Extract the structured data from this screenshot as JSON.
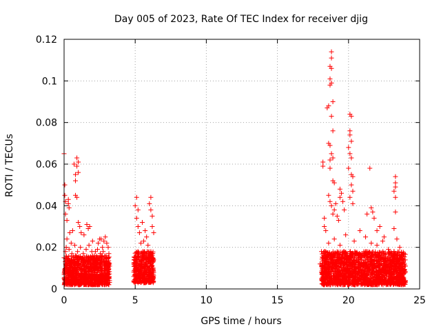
{
  "chart_data": {
    "type": "scatter",
    "title": "Day 005 of 2023, Rate Of TEC Index for receiver djig",
    "xlabel": "GPS time / hours",
    "ylabel": "ROTI / TECUs",
    "xlim": [
      0,
      25
    ],
    "ylim": [
      0,
      0.12
    ],
    "xticks": [
      0,
      5,
      10,
      15,
      20,
      25
    ],
    "xtick_labels": [
      "0",
      "5",
      "10",
      "15",
      "20",
      "25"
    ],
    "yticks": [
      0,
      0.02,
      0.04,
      0.06,
      0.08,
      0.1,
      0.12
    ],
    "ytick_labels": [
      "0",
      "0.02",
      "0.04",
      "0.06",
      "0.08",
      "0.1",
      "0.12"
    ],
    "grid": true,
    "marker": "+",
    "marker_color": "#ff0000",
    "series": [
      {
        "name": "ROTI",
        "points": [
          [
            0.0,
            0.065
          ],
          [
            0.05,
            0.05
          ],
          [
            0.05,
            0.045
          ],
          [
            0.1,
            0.042
          ],
          [
            0.1,
            0.036
          ],
          [
            0.2,
            0.033
          ],
          [
            0.3,
            0.043
          ],
          [
            0.3,
            0.041
          ],
          [
            0.35,
            0.039
          ],
          [
            0.2,
            0.024
          ],
          [
            0.1,
            0.018
          ],
          [
            0.4,
            0.027
          ],
          [
            0.5,
            0.022
          ],
          [
            0.7,
            0.06
          ],
          [
            0.8,
            0.055
          ],
          [
            0.8,
            0.052
          ],
          [
            0.9,
            0.063
          ],
          [
            0.9,
            0.059
          ],
          [
            1.0,
            0.061
          ],
          [
            1.0,
            0.056
          ],
          [
            0.8,
            0.045
          ],
          [
            0.9,
            0.044
          ],
          [
            1.0,
            0.032
          ],
          [
            1.1,
            0.03
          ],
          [
            0.6,
            0.028
          ],
          [
            1.2,
            0.027
          ],
          [
            1.4,
            0.026
          ],
          [
            1.6,
            0.031
          ],
          [
            1.7,
            0.029
          ],
          [
            1.8,
            0.03
          ],
          [
            2.0,
            0.023
          ],
          [
            2.2,
            0.018
          ],
          [
            2.4,
            0.022
          ],
          [
            2.5,
            0.024
          ],
          [
            2.6,
            0.024
          ],
          [
            2.7,
            0.02
          ],
          [
            2.8,
            0.023
          ],
          [
            2.9,
            0.025
          ],
          [
            3.0,
            0.022
          ],
          [
            3.1,
            0.02
          ],
          [
            0.0,
            0.015
          ],
          [
            0.1,
            0.012
          ],
          [
            0.2,
            0.01
          ],
          [
            0.3,
            0.008
          ],
          [
            0.4,
            0.012
          ],
          [
            0.5,
            0.014
          ],
          [
            0.6,
            0.009
          ],
          [
            0.7,
            0.011
          ],
          [
            0.8,
            0.016
          ],
          [
            0.9,
            0.007
          ],
          [
            1.0,
            0.012
          ],
          [
            1.1,
            0.01
          ],
          [
            1.2,
            0.014
          ],
          [
            1.3,
            0.009
          ],
          [
            1.4,
            0.011
          ],
          [
            1.5,
            0.013
          ],
          [
            1.6,
            0.008
          ],
          [
            1.7,
            0.012
          ],
          [
            1.8,
            0.015
          ],
          [
            1.9,
            0.01
          ],
          [
            2.0,
            0.011
          ],
          [
            2.1,
            0.009
          ],
          [
            2.2,
            0.013
          ],
          [
            2.3,
            0.012
          ],
          [
            2.4,
            0.01
          ],
          [
            2.5,
            0.014
          ],
          [
            2.6,
            0.009
          ],
          [
            2.7,
            0.011
          ],
          [
            2.8,
            0.012
          ],
          [
            2.9,
            0.01
          ],
          [
            3.0,
            0.013
          ],
          [
            3.1,
            0.008
          ],
          [
            3.2,
            0.011
          ],
          [
            0.0,
            0.005
          ],
          [
            0.2,
            0.004
          ],
          [
            0.4,
            0.006
          ],
          [
            0.6,
            0.004
          ],
          [
            0.8,
            0.005
          ],
          [
            1.0,
            0.004
          ],
          [
            1.2,
            0.006
          ],
          [
            1.4,
            0.005
          ],
          [
            1.6,
            0.003
          ],
          [
            1.8,
            0.006
          ],
          [
            2.0,
            0.004
          ],
          [
            2.2,
            0.005
          ],
          [
            2.4,
            0.006
          ],
          [
            2.6,
            0.004
          ],
          [
            2.8,
            0.005
          ],
          [
            3.0,
            0.006
          ],
          [
            3.2,
            0.004
          ],
          [
            0.15,
            0.02
          ],
          [
            0.35,
            0.019
          ],
          [
            0.55,
            0.017
          ],
          [
            0.75,
            0.021
          ],
          [
            0.95,
            0.018
          ],
          [
            1.15,
            0.02
          ],
          [
            1.35,
            0.017
          ],
          [
            1.55,
            0.019
          ],
          [
            1.75,
            0.021
          ],
          [
            1.95,
            0.018
          ],
          [
            2.15,
            0.016
          ],
          [
            2.35,
            0.019
          ],
          [
            2.55,
            0.017
          ],
          [
            2.75,
            0.018
          ],
          [
            2.95,
            0.016
          ],
          [
            3.15,
            0.017
          ],
          [
            4.9,
            0.012
          ],
          [
            5.0,
            0.01
          ],
          [
            5.1,
            0.015
          ],
          [
            5.2,
            0.018
          ],
          [
            5.3,
            0.013
          ],
          [
            5.4,
            0.011
          ],
          [
            5.5,
            0.016
          ],
          [
            5.6,
            0.014
          ],
          [
            5.7,
            0.012
          ],
          [
            5.8,
            0.017
          ],
          [
            5.9,
            0.015
          ],
          [
            6.0,
            0.013
          ],
          [
            6.1,
            0.018
          ],
          [
            6.2,
            0.016
          ],
          [
            6.3,
            0.014
          ],
          [
            4.9,
            0.006
          ],
          [
            5.1,
            0.005
          ],
          [
            5.3,
            0.007
          ],
          [
            5.5,
            0.004
          ],
          [
            5.7,
            0.006
          ],
          [
            5.9,
            0.005
          ],
          [
            6.1,
            0.007
          ],
          [
            6.3,
            0.008
          ],
          [
            5.2,
            0.003
          ],
          [
            5.6,
            0.003
          ],
          [
            5.0,
            0.04
          ],
          [
            5.1,
            0.044
          ],
          [
            5.2,
            0.038
          ],
          [
            5.1,
            0.034
          ],
          [
            5.2,
            0.03
          ],
          [
            5.3,
            0.027
          ],
          [
            5.5,
            0.032
          ],
          [
            5.6,
            0.023
          ],
          [
            5.7,
            0.028
          ],
          [
            5.8,
            0.025
          ],
          [
            6.0,
            0.041
          ],
          [
            6.1,
            0.044
          ],
          [
            6.1,
            0.038
          ],
          [
            6.2,
            0.035
          ],
          [
            6.2,
            0.03
          ],
          [
            6.3,
            0.027
          ],
          [
            5.4,
            0.022
          ],
          [
            5.9,
            0.021
          ],
          [
            18.2,
            0.061
          ],
          [
            18.2,
            0.059
          ],
          [
            18.3,
            0.034
          ],
          [
            18.3,
            0.03
          ],
          [
            18.4,
            0.028
          ],
          [
            18.1,
            0.018
          ],
          [
            18.2,
            0.015
          ],
          [
            18.0,
            0.012
          ],
          [
            18.1,
            0.008
          ],
          [
            18.3,
            0.01
          ],
          [
            18.4,
            0.006
          ],
          [
            18.5,
            0.087
          ],
          [
            18.6,
            0.088
          ],
          [
            18.7,
            0.107
          ],
          [
            18.7,
            0.101
          ],
          [
            18.7,
            0.098
          ],
          [
            18.8,
            0.114
          ],
          [
            18.8,
            0.111
          ],
          [
            18.8,
            0.106
          ],
          [
            18.8,
            0.099
          ],
          [
            18.9,
            0.09
          ],
          [
            18.8,
            0.083
          ],
          [
            18.9,
            0.076
          ],
          [
            18.6,
            0.07
          ],
          [
            18.7,
            0.069
          ],
          [
            18.8,
            0.065
          ],
          [
            18.7,
            0.062
          ],
          [
            18.9,
            0.063
          ],
          [
            18.7,
            0.058
          ],
          [
            18.9,
            0.052
          ],
          [
            19.0,
            0.051
          ],
          [
            18.6,
            0.045
          ],
          [
            18.7,
            0.042
          ],
          [
            18.8,
            0.04
          ],
          [
            18.9,
            0.036
          ],
          [
            19.0,
            0.038
          ],
          [
            19.1,
            0.041
          ],
          [
            19.2,
            0.035
          ],
          [
            19.3,
            0.033
          ],
          [
            19.4,
            0.048
          ],
          [
            19.4,
            0.044
          ],
          [
            19.5,
            0.046
          ],
          [
            19.6,
            0.042
          ],
          [
            19.7,
            0.038
          ],
          [
            20.0,
            0.068
          ],
          [
            20.1,
            0.076
          ],
          [
            20.1,
            0.074
          ],
          [
            20.2,
            0.083
          ],
          [
            20.1,
            0.084
          ],
          [
            20.2,
            0.071
          ],
          [
            20.1,
            0.065
          ],
          [
            20.2,
            0.063
          ],
          [
            20.0,
            0.058
          ],
          [
            20.2,
            0.055
          ],
          [
            20.3,
            0.054
          ],
          [
            20.2,
            0.05
          ],
          [
            20.3,
            0.047
          ],
          [
            20.3,
            0.041
          ],
          [
            20.1,
            0.044
          ],
          [
            21.5,
            0.058
          ],
          [
            21.3,
            0.036
          ],
          [
            21.6,
            0.039
          ],
          [
            21.7,
            0.037
          ],
          [
            21.8,
            0.034
          ],
          [
            22.0,
            0.028
          ],
          [
            22.2,
            0.03
          ],
          [
            22.5,
            0.025
          ],
          [
            23.3,
            0.054
          ],
          [
            23.3,
            0.051
          ],
          [
            23.3,
            0.049
          ],
          [
            23.2,
            0.047
          ],
          [
            23.3,
            0.044
          ],
          [
            23.3,
            0.037
          ],
          [
            23.2,
            0.029
          ],
          [
            23.4,
            0.024
          ],
          [
            18.5,
            0.014
          ],
          [
            18.7,
            0.016
          ],
          [
            18.9,
            0.013
          ],
          [
            19.1,
            0.017
          ],
          [
            19.3,
            0.015
          ],
          [
            19.5,
            0.012
          ],
          [
            19.7,
            0.018
          ],
          [
            19.9,
            0.014
          ],
          [
            20.1,
            0.016
          ],
          [
            20.3,
            0.013
          ],
          [
            20.5,
            0.017
          ],
          [
            20.7,
            0.015
          ],
          [
            20.9,
            0.012
          ],
          [
            21.1,
            0.016
          ],
          [
            21.3,
            0.014
          ],
          [
            21.5,
            0.017
          ],
          [
            21.7,
            0.013
          ],
          [
            21.9,
            0.015
          ],
          [
            22.1,
            0.012
          ],
          [
            22.3,
            0.016
          ],
          [
            22.5,
            0.014
          ],
          [
            22.7,
            0.011
          ],
          [
            22.9,
            0.013
          ],
          [
            23.1,
            0.015
          ],
          [
            23.3,
            0.012
          ],
          [
            23.5,
            0.01
          ],
          [
            23.7,
            0.012
          ],
          [
            23.9,
            0.009
          ],
          [
            24.0,
            0.011
          ],
          [
            18.6,
            0.022
          ],
          [
            19.0,
            0.024
          ],
          [
            19.4,
            0.021
          ],
          [
            19.8,
            0.026
          ],
          [
            20.4,
            0.023
          ],
          [
            20.8,
            0.028
          ],
          [
            21.2,
            0.025
          ],
          [
            21.6,
            0.022
          ],
          [
            22.0,
            0.021
          ],
          [
            22.4,
            0.023
          ],
          [
            22.8,
            0.019
          ],
          [
            23.2,
            0.018
          ],
          [
            23.6,
            0.02
          ],
          [
            23.9,
            0.017
          ],
          [
            18.4,
            0.005
          ],
          [
            18.8,
            0.006
          ],
          [
            19.2,
            0.004
          ],
          [
            19.6,
            0.005
          ],
          [
            20.0,
            0.006
          ],
          [
            20.4,
            0.004
          ],
          [
            20.8,
            0.005
          ],
          [
            21.2,
            0.006
          ],
          [
            21.6,
            0.004
          ],
          [
            22.0,
            0.005
          ],
          [
            22.4,
            0.006
          ],
          [
            22.8,
            0.004
          ],
          [
            23.2,
            0.005
          ],
          [
            23.6,
            0.003
          ],
          [
            24.0,
            0.004
          ],
          [
            18.5,
            0.008
          ],
          [
            18.9,
            0.009
          ],
          [
            19.3,
            0.008
          ],
          [
            19.7,
            0.009
          ],
          [
            20.1,
            0.01
          ],
          [
            20.5,
            0.008
          ],
          [
            20.9,
            0.009
          ],
          [
            21.3,
            0.01
          ],
          [
            21.7,
            0.008
          ],
          [
            22.1,
            0.009
          ],
          [
            22.5,
            0.008
          ],
          [
            22.9,
            0.007
          ],
          [
            23.3,
            0.008
          ],
          [
            23.7,
            0.006
          ]
        ]
      }
    ],
    "dense_bands": [
      {
        "x_range": [
          0.0,
          3.2
        ],
        "y_range": [
          0.002,
          0.016
        ],
        "count": 900
      },
      {
        "x_range": [
          4.9,
          6.3
        ],
        "y_range": [
          0.003,
          0.018
        ],
        "count": 380
      },
      {
        "x_range": [
          18.1,
          24.0
        ],
        "y_range": [
          0.002,
          0.018
        ],
        "count": 1700
      }
    ]
  }
}
